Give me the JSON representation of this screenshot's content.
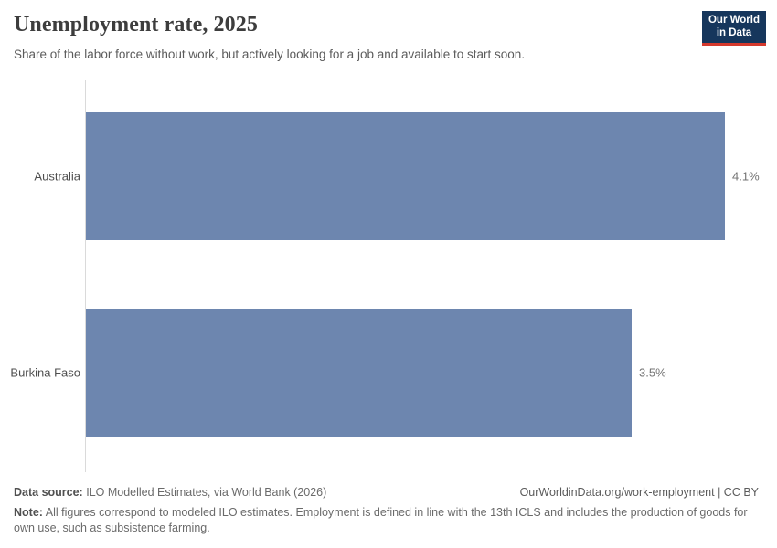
{
  "header": {
    "title": "Unemployment rate, 2025",
    "subtitle": "Share of the labor force without work, but actively looking for a job and available to start soon.",
    "logo": {
      "line1": "Our World",
      "line2": "in Data"
    }
  },
  "chart_data": {
    "type": "bar",
    "orientation": "horizontal",
    "title": "Unemployment rate, 2025",
    "categories": [
      "Australia",
      "Burkina Faso"
    ],
    "values": [
      4.1,
      3.5
    ],
    "value_labels": [
      "4.1%",
      "3.5%"
    ],
    "unit": "%",
    "xlim": [
      0,
      4.1
    ],
    "grid": false,
    "legend": "none",
    "bar_color": "#6d86af"
  },
  "footer": {
    "data_source_label": "Data source:",
    "data_source": "ILO Modelled Estimates, via World Bank (2026)",
    "link": "OurWorldinData.org/work-employment | CC BY",
    "note_label": "Note:",
    "note": "All figures correspond to modeled ILO estimates. Employment is defined in line with the 13th ICLS and includes the production of goods for own use, such as subsistence farming."
  },
  "colors": {
    "bar": "#6d86af",
    "logo_background": "#16365c",
    "logo_accent": "#d5392d",
    "axis_line": "#dadada",
    "title_text": "#3d3d3d"
  }
}
